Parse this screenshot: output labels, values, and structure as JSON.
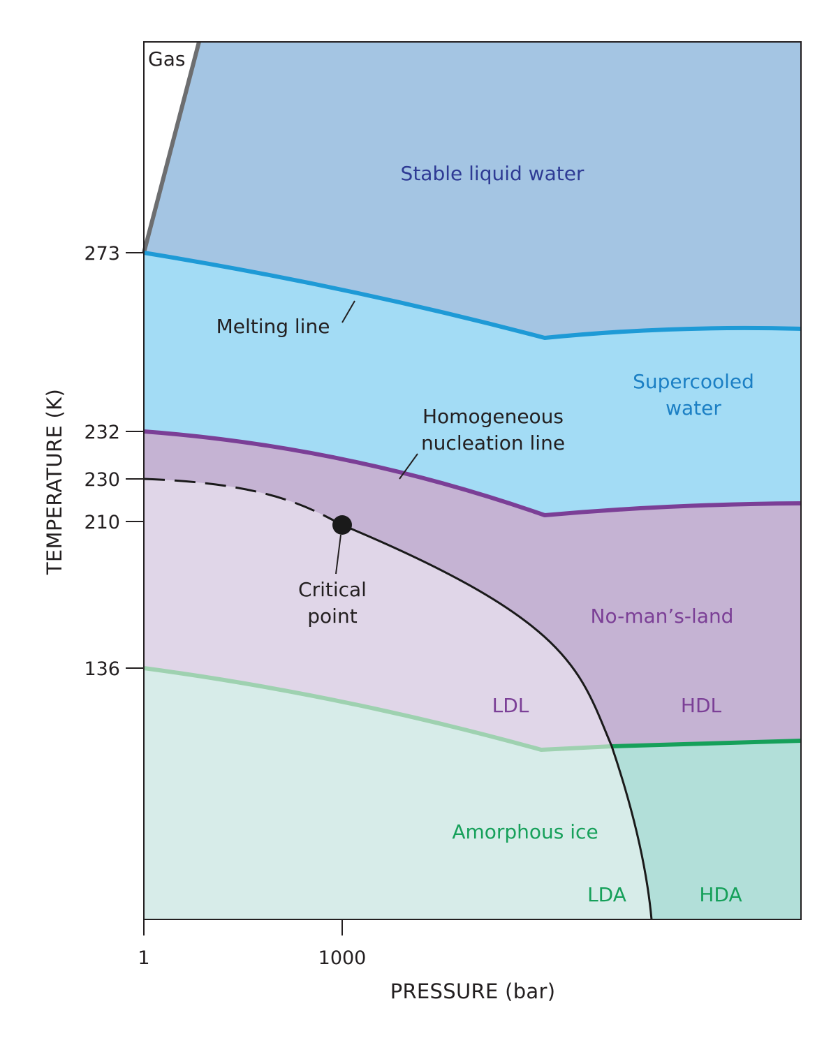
{
  "axes": {
    "x_title": "PRESSURE (bar)",
    "y_title": "TEMPERATURE (K)",
    "x_ticks": [
      "1",
      "1000"
    ],
    "y_ticks": [
      "273",
      "232",
      "230",
      "210",
      "136"
    ]
  },
  "regions": {
    "gas": "Gas",
    "stable_liquid": "Stable liquid water",
    "supercooled_line1": "Supercooled",
    "supercooled_line2": "water",
    "no_mans_land": "No-man’s-land",
    "ldl": "LDL",
    "hdl": "HDL",
    "amorphous_ice": "Amorphous ice",
    "lda": "LDA",
    "hda": "HDA"
  },
  "annotations": {
    "melting_line": "Melting line",
    "nucleation_line1": "Homogeneous",
    "nucleation_line2": "nucleation line",
    "critical_line1": "Critical",
    "critical_line2": "point"
  },
  "colors": {
    "stable_liquid_fill": "#a4c5e3",
    "supercooled_fill": "#a3dcf5",
    "no_mans_land_fill": "#c5b3d3",
    "ldl_fill": "#e0d6e8",
    "amorphous_fill": "#d7ece9",
    "hda_fill": "#b2dfd9",
    "melting_line": "#1e9ad6",
    "nucleation_line": "#7b3f96",
    "ldl_boundary": "#9ed1b0",
    "hdl_boundary": "#16a05a",
    "gas_line": "#6d6e70",
    "critical_curve": "#1a1a1a",
    "stable_label": "#2e3a94",
    "supercooled_label": "#1b7fc4",
    "purple_label": "#7b3f96",
    "green_label": "#16a05a"
  }
}
